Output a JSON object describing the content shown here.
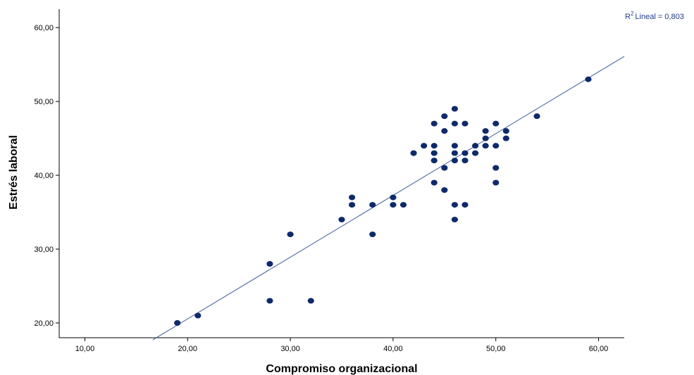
{
  "chart_data": {
    "type": "scatter",
    "xlabel": "Compromiso organizacional",
    "ylabel": "Estrés laboral",
    "xlim": [
      7.5,
      62.5
    ],
    "ylim": [
      18.0,
      62.5
    ],
    "x_ticks": [
      10,
      20,
      30,
      40,
      50,
      60
    ],
    "y_ticks": [
      20,
      30,
      40,
      50,
      60
    ],
    "x_tick_labels": [
      "10,00",
      "20,00",
      "30,00",
      "40,00",
      "50,00",
      "60,00"
    ],
    "y_tick_labels": [
      "20,00",
      "30,00",
      "40,00",
      "50,00",
      "60,00"
    ],
    "grid": false,
    "point_color": "#0d2a6b",
    "line_color": "#3f5a9e",
    "points": [
      [
        19,
        20
      ],
      [
        21,
        21
      ],
      [
        28,
        28
      ],
      [
        28,
        23
      ],
      [
        30,
        32
      ],
      [
        32,
        23
      ],
      [
        35,
        34
      ],
      [
        36,
        37
      ],
      [
        36,
        36
      ],
      [
        38,
        36
      ],
      [
        38,
        32
      ],
      [
        40,
        37
      ],
      [
        40,
        36
      ],
      [
        41,
        36
      ],
      [
        42,
        43
      ],
      [
        43,
        44
      ],
      [
        44,
        47
      ],
      [
        44,
        44
      ],
      [
        44,
        43
      ],
      [
        44,
        42
      ],
      [
        44,
        39
      ],
      [
        45,
        48
      ],
      [
        45,
        46
      ],
      [
        45,
        41
      ],
      [
        45,
        38
      ],
      [
        46,
        49
      ],
      [
        46,
        47
      ],
      [
        46,
        44
      ],
      [
        46,
        43
      ],
      [
        46,
        42
      ],
      [
        46,
        36
      ],
      [
        46,
        34
      ],
      [
        47,
        47
      ],
      [
        47,
        43
      ],
      [
        47,
        42
      ],
      [
        47,
        36
      ],
      [
        48,
        44
      ],
      [
        48,
        43
      ],
      [
        49,
        46
      ],
      [
        49,
        45
      ],
      [
        49,
        44
      ],
      [
        50,
        47
      ],
      [
        50,
        44
      ],
      [
        50,
        41
      ],
      [
        50,
        39
      ],
      [
        51,
        46
      ],
      [
        51,
        45
      ],
      [
        54,
        48
      ],
      [
        59,
        53
      ]
    ],
    "fit_line": {
      "x": [
        16.6,
        62.5
      ],
      "y": [
        17.7,
        56.1
      ]
    },
    "r2_label": "Lineal = 0,803"
  }
}
